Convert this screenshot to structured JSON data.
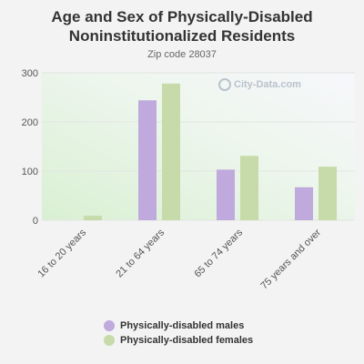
{
  "chart_data": {
    "type": "bar",
    "title": "Age and Sex of Physically-Disabled Noninstitutionalized Residents",
    "subtitle": "Zip code 28037",
    "categories": [
      "16 to 20 years",
      "21 to 64 years",
      "65 to 74 years",
      "75 years and over"
    ],
    "series": [
      {
        "name": "Physically-disabled males",
        "values": [
          0,
          244,
          103,
          67
        ],
        "color": "#c0a9dc"
      },
      {
        "name": "Physically-disabled females",
        "values": [
          9,
          278,
          131,
          109
        ],
        "color": "#c6dba9"
      }
    ],
    "ylim": [
      0,
      300
    ],
    "yticks": [
      0,
      100,
      200,
      300
    ],
    "grid": true,
    "legend": "bottom"
  },
  "watermark": "City-Data.com"
}
